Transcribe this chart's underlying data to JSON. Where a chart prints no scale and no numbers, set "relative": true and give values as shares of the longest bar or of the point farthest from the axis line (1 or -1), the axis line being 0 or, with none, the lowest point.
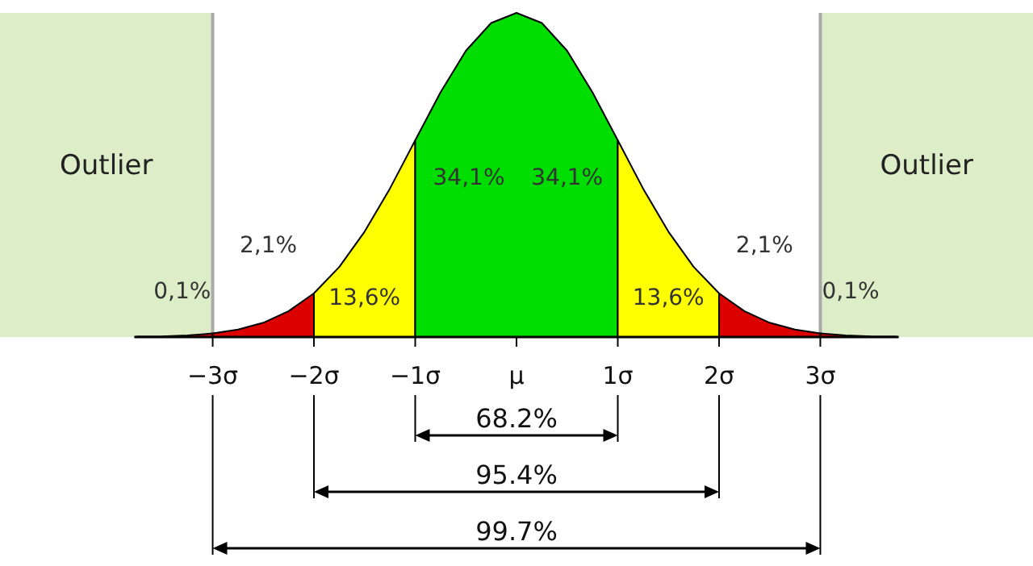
{
  "chart_data": {
    "type": "area",
    "relative": true,
    "xlim": [
      -5.1,
      5.1
    ],
    "xticks": [
      {
        "value": -3,
        "label": "−3σ"
      },
      {
        "value": -2,
        "label": "−2σ"
      },
      {
        "value": -1,
        "label": "−1σ"
      },
      {
        "value": 0,
        "label": "μ"
      },
      {
        "value": 1,
        "label": "1σ"
      },
      {
        "value": 2,
        "label": "2σ"
      },
      {
        "value": 3,
        "label": "3σ"
      }
    ],
    "series": [
      {
        "color": "#dd0000",
        "x": [
          -3.75,
          -3.5,
          -3.25,
          -3
        ],
        "values": [
          0.001,
          0.002,
          0.005,
          0.011
        ]
      },
      {
        "color": "#dd0000",
        "x": [
          -3,
          -2.75,
          -2.5,
          -2.25,
          -2
        ],
        "values": [
          0.011,
          0.023,
          0.044,
          0.08,
          0.135
        ]
      },
      {
        "color": "#ffff00",
        "x": [
          -2,
          -1.75,
          -1.5,
          -1.25,
          -1
        ],
        "values": [
          0.135,
          0.216,
          0.325,
          0.458,
          0.607
        ]
      },
      {
        "color": "#00dd00",
        "x": [
          -1,
          -0.75,
          -0.5,
          -0.25,
          0,
          0.25,
          0.5,
          0.75,
          1
        ],
        "values": [
          0.607,
          0.755,
          0.883,
          0.969,
          1,
          0.969,
          0.883,
          0.755,
          0.607
        ]
      },
      {
        "color": "#ffff00",
        "x": [
          1,
          1.25,
          1.5,
          1.75,
          2
        ],
        "values": [
          0.607,
          0.458,
          0.325,
          0.216,
          0.135
        ]
      },
      {
        "color": "#dd0000",
        "x": [
          2,
          2.25,
          2.5,
          2.75,
          3
        ],
        "values": [
          0.135,
          0.08,
          0.044,
          0.023,
          0.011
        ]
      },
      {
        "color": "#dd0000",
        "x": [
          3,
          3.25,
          3.5,
          3.75
        ],
        "values": [
          0.011,
          0.005,
          0.002,
          0.001
        ]
      }
    ],
    "bands": [
      {
        "axis": "x",
        "from": -5.1,
        "to": -3,
        "label": "Outlier",
        "color": "#dcedc8"
      },
      {
        "axis": "x",
        "from": 3,
        "to": 5.1,
        "label": "Outlier",
        "color": "#dcedc8"
      }
    ],
    "annotations": [
      "0,1%",
      "2,1%",
      "13,6%",
      "34,1%",
      "34,1%",
      "13,6%",
      "2,1%",
      "0,1%",
      "68.2%",
      "95.4%",
      "99.7%"
    ]
  }
}
